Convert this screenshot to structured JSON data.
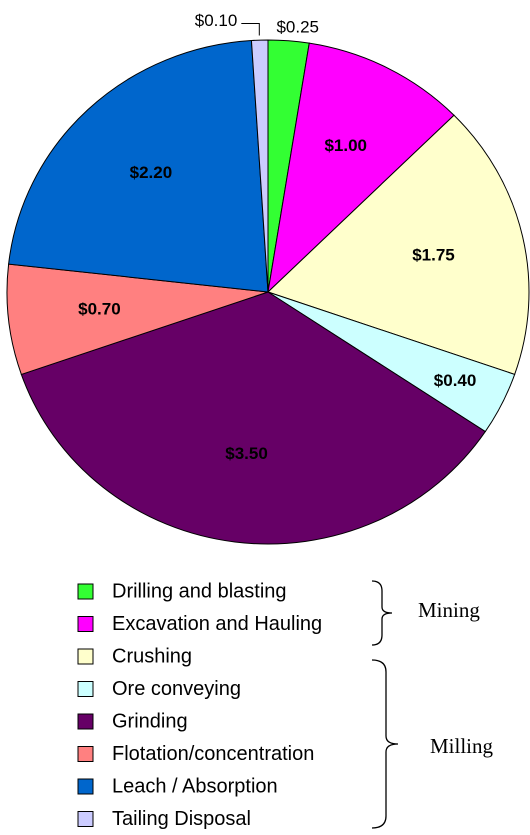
{
  "chart_data": {
    "type": "pie",
    "categories": [
      "Drilling and blasting",
      "Excavation and Hauling",
      "Crushing",
      "Ore conveying",
      "Grinding",
      "Flotation/concentration",
      "Leach / Absorption",
      "Tailing Disposal"
    ],
    "values": [
      0.25,
      1.0,
      1.75,
      0.4,
      3.5,
      0.7,
      2.2,
      0.1
    ],
    "value_labels": [
      "$0.25",
      "$1.00",
      "$1.75",
      "$0.40",
      "$3.50",
      "$0.70",
      "$2.20",
      "$0.10"
    ],
    "colors": [
      "#33ff33",
      "#ff00ff",
      "#ffffcc",
      "#ccffff",
      "#660066",
      "#ff8080",
      "#0066cc",
      "#ccccff"
    ],
    "annotations": [
      "Mining",
      "Milling"
    ]
  }
}
